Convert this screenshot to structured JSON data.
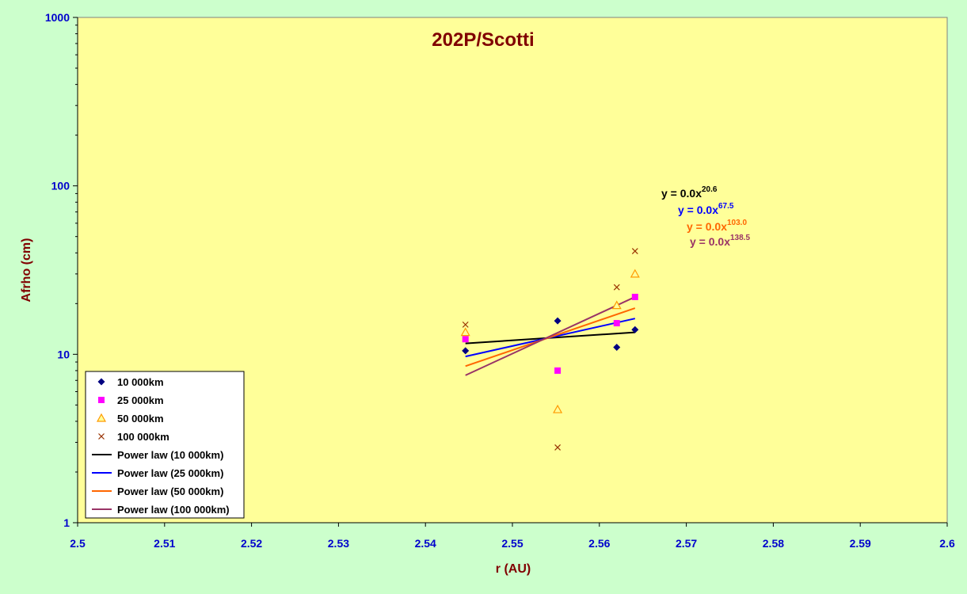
{
  "chart_data": {
    "type": "scatter",
    "title": "202P/Scotti",
    "xlabel": "r (AU)",
    "ylabel": "Afrho (cm)",
    "xlim": [
      2.5,
      2.6
    ],
    "ylim": [
      1,
      1000
    ],
    "y_scale": "log",
    "x_ticks": [
      "2.5",
      "2.51",
      "2.52",
      "2.53",
      "2.54",
      "2.55",
      "2.56",
      "2.57",
      "2.58",
      "2.59",
      "2.6"
    ],
    "y_ticks": [
      "1",
      "10",
      "100",
      "1000"
    ],
    "grid": false,
    "legend_position": "bottom-left",
    "colors": {
      "plot_bg": "#ffff99",
      "page_bg": "#ccffcc",
      "title": "#800000",
      "ylabel": "#800000",
      "xlabel": "#800000",
      "ticks": "#0000cc"
    },
    "series": [
      {
        "name": "10 000km",
        "marker": "diamond",
        "color": "#000080",
        "x": [
          2.5446,
          2.5552,
          2.562,
          2.5641
        ],
        "y": [
          10.5,
          15.8,
          11.0,
          14.0
        ]
      },
      {
        "name": "25 000km",
        "marker": "square",
        "color": "#ff00ff",
        "x": [
          2.5446,
          2.5552,
          2.562,
          2.5641
        ],
        "y": [
          12.3,
          8.0,
          15.3,
          21.9
        ]
      },
      {
        "name": "50 000km",
        "marker": "triangle",
        "color": "#ff9900",
        "x": [
          2.5446,
          2.5552,
          2.562,
          2.5641
        ],
        "y": [
          13.5,
          4.7,
          19.5,
          30.0
        ]
      },
      {
        "name": "100 000km",
        "marker": "x",
        "color": "#993300",
        "x": [
          2.5446,
          2.5552,
          2.562,
          2.5641
        ],
        "y": [
          15.0,
          2.8,
          25.0,
          41.0
        ]
      }
    ],
    "trendlines": [
      {
        "name": "Power law (10 000km)",
        "color": "#000000",
        "x": [
          2.5446,
          2.5641
        ],
        "y": [
          11.6,
          13.5
        ],
        "equation_base": "y = 0.0x",
        "exponent": "20.6"
      },
      {
        "name": "Power law (25 000km)",
        "color": "#0000ff",
        "x": [
          2.5446,
          2.5641
        ],
        "y": [
          9.7,
          16.3
        ],
        "equation_base": "y = 0.0x",
        "exponent": "67.5"
      },
      {
        "name": "Power law (50 000km)",
        "color": "#ff6600",
        "x": [
          2.5446,
          2.5641
        ],
        "y": [
          8.5,
          18.8
        ],
        "equation_base": "y = 0.0x",
        "exponent": "103.0"
      },
      {
        "name": "Power law (100 000km)",
        "color": "#993366",
        "x": [
          2.5446,
          2.5641
        ],
        "y": [
          7.5,
          21.9
        ],
        "equation_base": "y = 0.0x",
        "exponent": "138.5"
      }
    ]
  }
}
